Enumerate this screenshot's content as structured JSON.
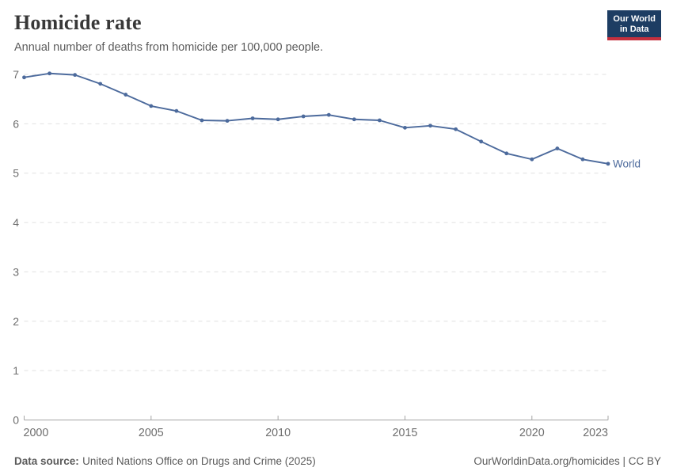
{
  "header": {
    "title": "Homicide rate",
    "subtitle": "Annual number of deaths from homicide per 100,000 people.",
    "logo": {
      "line1": "Our World",
      "line2": "in Data",
      "bg_color": "#1d3d63",
      "accent_color": "#c5303e"
    }
  },
  "chart_data": {
    "type": "line",
    "title": "Homicide rate",
    "xlabel": "",
    "ylabel": "",
    "x": [
      2000,
      2001,
      2002,
      2003,
      2004,
      2005,
      2006,
      2007,
      2008,
      2009,
      2010,
      2011,
      2012,
      2013,
      2014,
      2015,
      2016,
      2017,
      2018,
      2019,
      2020,
      2021,
      2022,
      2023
    ],
    "series": [
      {
        "name": "World",
        "color": "#4c6a9c",
        "values": [
          6.94,
          7.02,
          6.99,
          6.81,
          6.59,
          6.36,
          6.26,
          6.07,
          6.06,
          6.11,
          6.09,
          6.15,
          6.18,
          6.09,
          6.07,
          5.92,
          5.96,
          5.89,
          5.64,
          5.4,
          5.28,
          5.5,
          5.28,
          5.19
        ]
      }
    ],
    "ylim": [
      0,
      7
    ],
    "yticks": [
      0,
      1,
      2,
      3,
      4,
      5,
      6,
      7
    ],
    "xticks": [
      2000,
      2005,
      2010,
      2015,
      2020,
      2023
    ],
    "grid": "horizontal-dashed",
    "legend_position": "end-of-line",
    "grid_color": "#e0e0e0",
    "axis_color": "#a5a5a5",
    "tick_label_color": "#6e6e6e"
  },
  "footer": {
    "source_label": "Data source:",
    "source": "United Nations Office on Drugs and Crime (2025)",
    "credit": "OurWorldinData.org/homicides | CC BY"
  }
}
